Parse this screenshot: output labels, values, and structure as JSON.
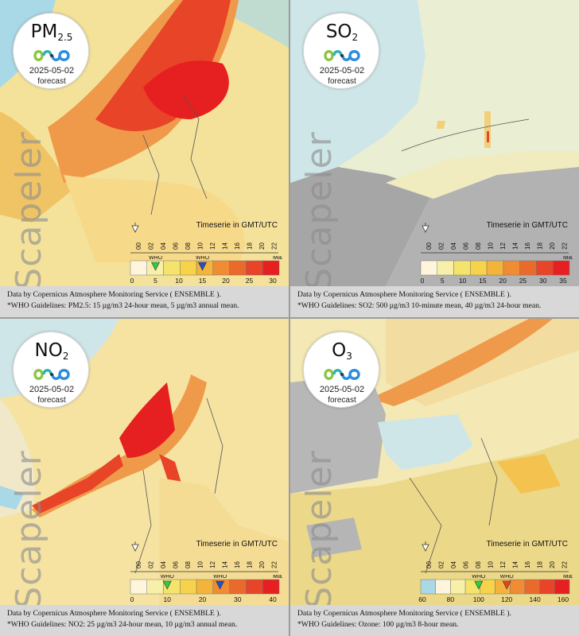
{
  "date": "2025-05-02",
  "forecast_label": "forecast",
  "watermark": "Scapeler",
  "timeserie_label": "Timeserie in GMT/UTC",
  "time_ticks": [
    "00",
    "02",
    "04",
    "06",
    "08",
    "10",
    "12",
    "14",
    "16",
    "18",
    "20",
    "22"
  ],
  "who_label": "WHO",
  "max_label": "Max",
  "data_source": "Data by Copernicus Atmosphere Monitoring Service ( ENSEMBLE ).",
  "colors": {
    "land_background": "#9e9e9e",
    "sea": "#a9d8e6",
    "who_annual_arrow": "#2ecc40",
    "who_daily_arrow": "#2050d0",
    "caption_background": "#d8d8d8"
  },
  "panels": [
    {
      "pollutant": "PM",
      "pollutant_sub": "2.5",
      "guidelines": "*WHO Guidelines: PM2.5: 15 µg/m3 24-hour mean, 5 µg/m3 annual mean.",
      "scale_labels": [
        "0",
        "5",
        "10",
        "15",
        "20",
        "25",
        "30"
      ],
      "scale_colors": [
        "#fdf6dc",
        "#f8f0a8",
        "#f4e46c",
        "#f6d34a",
        "#f4b43c",
        "#ef8c34",
        "#ea6a2c",
        "#e84428",
        "#e62020"
      ],
      "who_markers": [
        {
          "color": "#2ecc40",
          "value": 5
        },
        {
          "color": "#2050d0",
          "value": 15
        }
      ]
    },
    {
      "pollutant": "SO",
      "pollutant_sub": "2",
      "guidelines": "*WHO Guidelines: SO2: 500 µg/m3 10-minute mean, 40 µg/m3 24-hour mean.",
      "scale_labels": [
        "0",
        "5",
        "10",
        "15",
        "20",
        "25",
        "30",
        "35"
      ],
      "scale_colors": [
        "#fdf6dc",
        "#f8f0a8",
        "#f4e46c",
        "#f6d34a",
        "#f4b43c",
        "#ef8c34",
        "#ea6a2c",
        "#e84428",
        "#e62020"
      ],
      "who_markers": []
    },
    {
      "pollutant": "NO",
      "pollutant_sub": "2",
      "guidelines": "*WHO Guidelines: NO2: 25 µg/m3 24-hour mean, 10 µg/m3 annual mean.",
      "scale_labels": [
        "0",
        "10",
        "20",
        "30",
        "40"
      ],
      "scale_colors": [
        "#fdf6dc",
        "#f8f0a8",
        "#f4e46c",
        "#f6d34a",
        "#f4b43c",
        "#ef8c34",
        "#ea6a2c",
        "#e84428",
        "#e62020"
      ],
      "who_markers": [
        {
          "color": "#2ecc40",
          "value": 10
        },
        {
          "color": "#2050d0",
          "value": 25
        }
      ]
    },
    {
      "pollutant": "O",
      "pollutant_sub": "3",
      "guidelines": "*WHO Guidelines: Ozone: 100 µg/m3 8-hour mean.",
      "scale_labels": [
        "60",
        "80",
        "100",
        "120",
        "140",
        "160"
      ],
      "scale_colors": [
        "#a9d8e6",
        "#fdf6dc",
        "#f8f0a8",
        "#f4e46c",
        "#f6d34a",
        "#f4b43c",
        "#ef8c34",
        "#ea6a2c",
        "#e84428",
        "#e62020"
      ],
      "who_markers": [
        {
          "color": "#2ecc40",
          "value": 100
        },
        {
          "color": "#e84428",
          "value": 120
        }
      ]
    }
  ]
}
